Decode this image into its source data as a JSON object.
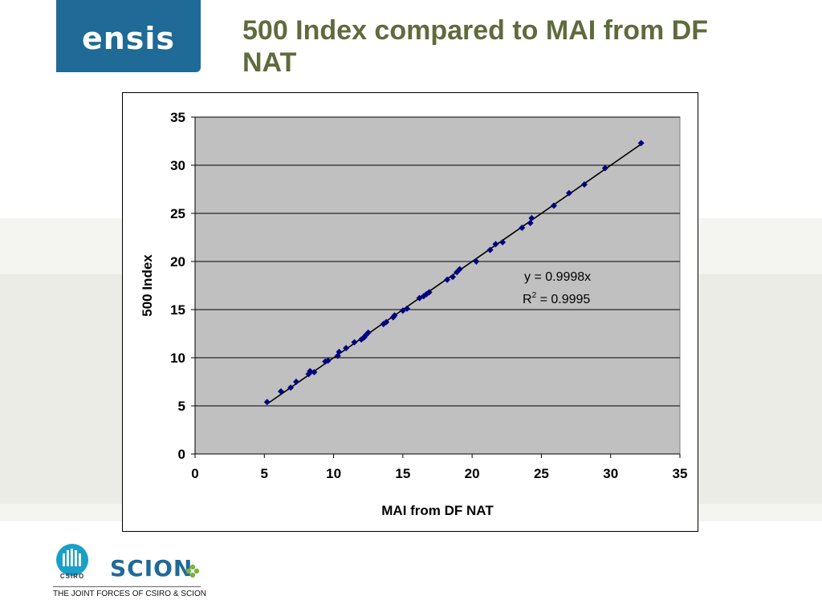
{
  "header": {
    "logo_text": "ensis",
    "title": "500 Index compared to MAI from DF NAT"
  },
  "footer": {
    "csiro_text": "CSIRO",
    "scion_text": "SCION",
    "tagline": "THE JOINT FORCES OF CSIRO & SCION"
  },
  "colors": {
    "brand_blue": "#1f6a96",
    "title_olive": "#5e6b3c",
    "plot_area": "#c0c0c0",
    "marker": "#000080"
  },
  "chart_data": {
    "type": "scatter",
    "title": "",
    "xlabel": "MAI from DF NAT",
    "ylabel": "500 Index",
    "xlim": [
      0,
      35
    ],
    "ylim": [
      0,
      35
    ],
    "xticks": [
      0,
      5,
      10,
      15,
      20,
      25,
      30,
      35
    ],
    "yticks": [
      0,
      5,
      10,
      15,
      20,
      25,
      30,
      35
    ],
    "grid": "horizontal",
    "legend": "none",
    "series": [
      {
        "points": [
          [
            5.2,
            5.4
          ],
          [
            6.2,
            6.5
          ],
          [
            6.9,
            6.9
          ],
          [
            7.3,
            7.5
          ],
          [
            8.2,
            8.3
          ],
          [
            8.3,
            8.6
          ],
          [
            8.6,
            8.5
          ],
          [
            9.4,
            9.6
          ],
          [
            9.6,
            9.7
          ],
          [
            10.3,
            10.2
          ],
          [
            10.4,
            10.6
          ],
          [
            10.9,
            11.0
          ],
          [
            11.5,
            11.6
          ],
          [
            12.0,
            11.9
          ],
          [
            12.2,
            12.1
          ],
          [
            12.3,
            12.3
          ],
          [
            12.5,
            12.6
          ],
          [
            13.6,
            13.5
          ],
          [
            13.8,
            13.7
          ],
          [
            14.3,
            14.2
          ],
          [
            14.4,
            14.4
          ],
          [
            15.0,
            14.9
          ],
          [
            15.3,
            15.1
          ],
          [
            16.2,
            16.2
          ],
          [
            16.5,
            16.4
          ],
          [
            16.7,
            16.6
          ],
          [
            16.9,
            16.8
          ],
          [
            18.2,
            18.1
          ],
          [
            18.6,
            18.4
          ],
          [
            18.9,
            18.9
          ],
          [
            19.1,
            19.2
          ],
          [
            20.3,
            20.0
          ],
          [
            21.3,
            21.2
          ],
          [
            21.7,
            21.8
          ],
          [
            22.2,
            22.0
          ],
          [
            23.6,
            23.5
          ],
          [
            24.2,
            24.0
          ],
          [
            24.3,
            24.5
          ],
          [
            25.9,
            25.8
          ],
          [
            27.0,
            27.1
          ],
          [
            28.1,
            28.0
          ],
          [
            29.6,
            29.7
          ],
          [
            32.2,
            32.3
          ]
        ]
      }
    ],
    "trendline": {
      "slope": 0.9998,
      "x_range": [
        5.2,
        32.2
      ],
      "equation_label": "y = 0.9998x",
      "r2_base": "R",
      "r2_sup": "2",
      "r2_value": " = 0.9995"
    }
  }
}
